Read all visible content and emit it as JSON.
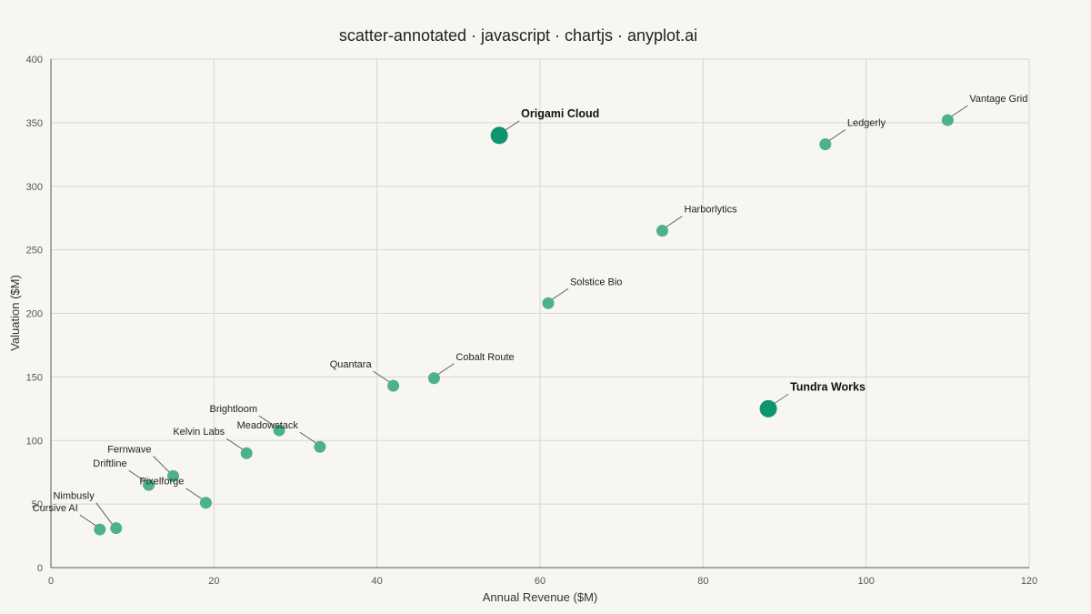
{
  "chart_data": {
    "type": "scatter",
    "title": "scatter-annotated · javascript · chartjs · anyplot.ai",
    "xlabel": "Annual Revenue ($M)",
    "ylabel": "Valuation ($M)",
    "xlim": [
      0,
      120
    ],
    "ylim": [
      0,
      400
    ],
    "xticks": [
      0,
      20,
      40,
      60,
      80,
      100,
      120
    ],
    "yticks": [
      0,
      50,
      100,
      150,
      200,
      250,
      300,
      350,
      400
    ],
    "grid": true,
    "legend": "none",
    "colors": {
      "point": "#3aaa85",
      "highlight": "#0f9470"
    },
    "points": [
      {
        "label": "Cursive AI",
        "x": 6,
        "y": 30,
        "highlight": false
      },
      {
        "label": "Nimbusly",
        "x": 8,
        "y": 31,
        "highlight": false
      },
      {
        "label": "Driftline",
        "x": 12,
        "y": 65,
        "highlight": false
      },
      {
        "label": "Fernwave",
        "x": 15,
        "y": 72,
        "highlight": false
      },
      {
        "label": "Pixelforge",
        "x": 19,
        "y": 51,
        "highlight": false
      },
      {
        "label": "Kelvin Labs",
        "x": 24,
        "y": 90,
        "highlight": false
      },
      {
        "label": "Brightloom",
        "x": 28,
        "y": 108,
        "highlight": false
      },
      {
        "label": "Meadowstack",
        "x": 33,
        "y": 95,
        "highlight": false
      },
      {
        "label": "Quantara",
        "x": 42,
        "y": 143,
        "highlight": false
      },
      {
        "label": "Cobalt Route",
        "x": 47,
        "y": 149,
        "highlight": false
      },
      {
        "label": "Origami Cloud",
        "x": 55,
        "y": 340,
        "highlight": true
      },
      {
        "label": "Solstice Bio",
        "x": 61,
        "y": 208,
        "highlight": false
      },
      {
        "label": "Harborlytics",
        "x": 75,
        "y": 265,
        "highlight": false
      },
      {
        "label": "Tundra Works",
        "x": 88,
        "y": 125,
        "highlight": true
      },
      {
        "label": "Ledgerly",
        "x": 95,
        "y": 333,
        "highlight": false
      },
      {
        "label": "Vantage Grid",
        "x": 110,
        "y": 352,
        "highlight": false
      }
    ]
  }
}
